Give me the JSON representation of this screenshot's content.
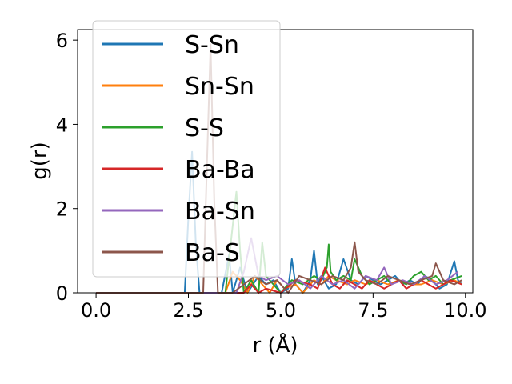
{
  "chart_data": {
    "type": "line",
    "xlabel": "r (Å)",
    "ylabel": "g(r)",
    "xlim": [
      -0.5,
      10.2
    ],
    "ylim": [
      0,
      6.25
    ],
    "xticks": [
      0.0,
      2.5,
      5.0,
      7.5,
      10.0
    ],
    "xtick_labels": [
      "0.0",
      "2.5",
      "5.0",
      "7.5",
      "10.0"
    ],
    "yticks": [
      0,
      2,
      4,
      6
    ],
    "ytick_labels": [
      "0",
      "2",
      "4",
      "6"
    ],
    "grid": false,
    "legend_position": "upper-left",
    "series": [
      {
        "name": "S-Sn",
        "color": "#1f77b4",
        "x": [
          0,
          0.5,
          1,
          1.5,
          2,
          2.4,
          2.5,
          2.6,
          2.7,
          2.8,
          3.0,
          3.4,
          3.6,
          3.7,
          3.9,
          4.1,
          4.4,
          4.6,
          4.8,
          5.0,
          5.2,
          5.3,
          5.4,
          5.6,
          5.8,
          5.9,
          6.0,
          6.1,
          6.3,
          6.5,
          6.7,
          6.9,
          7.1,
          7.3,
          7.5,
          7.7,
          7.9,
          8.1,
          8.3,
          8.5,
          8.7,
          8.9,
          9.1,
          9.3,
          9.5,
          9.7,
          9.8,
          9.9
        ],
        "y": [
          0,
          0,
          0,
          0,
          0,
          0,
          1.8,
          3.35,
          1.2,
          0,
          0,
          0,
          0.9,
          0,
          0.6,
          0,
          0.4,
          0.2,
          0.3,
          0,
          0.1,
          0.8,
          0.2,
          0,
          0.3,
          1.0,
          0.2,
          0.4,
          0.1,
          0.2,
          0.8,
          0.3,
          0.2,
          0.4,
          0.3,
          0.2,
          0.3,
          0.4,
          0.2,
          0.3,
          0.2,
          0.4,
          0.3,
          0.1,
          0.2,
          0.75,
          0.3,
          0.2
        ]
      },
      {
        "name": "Sn-Sn",
        "color": "#ff7f0e",
        "x": [
          0,
          1,
          2,
          3,
          3.5,
          3.7,
          3.9,
          4.1,
          4.3,
          4.5,
          4.7,
          4.9,
          5.1,
          5.4,
          5.6,
          5.9,
          6.1,
          6.3,
          6.5,
          6.8,
          7.0,
          7.3,
          7.6,
          7.9,
          8.2,
          8.5,
          8.8,
          9.1,
          9.4,
          9.7,
          9.9
        ],
        "y": [
          0,
          0,
          0,
          0,
          0,
          0.5,
          0.3,
          0,
          0.4,
          0.2,
          0,
          0.3,
          0.1,
          0.2,
          0,
          0.3,
          0.2,
          0.4,
          0.3,
          0.2,
          0.3,
          0.2,
          0.3,
          0.2,
          0.3,
          0.2,
          0.2,
          0.3,
          0.2,
          0.3,
          0.2
        ]
      },
      {
        "name": "S-S",
        "color": "#2ca02c",
        "x": [
          0,
          1,
          2,
          3,
          3.5,
          3.7,
          3.8,
          3.9,
          4.0,
          4.2,
          4.4,
          4.5,
          4.6,
          4.8,
          5.0,
          5.3,
          5.6,
          5.9,
          6.1,
          6.25,
          6.3,
          6.35,
          6.5,
          6.7,
          6.9,
          7.0,
          7.2,
          7.4,
          7.6,
          7.8,
          8.0,
          8.2,
          8.4,
          8.6,
          8.8,
          9.0,
          9.2,
          9.4,
          9.6,
          9.9
        ],
        "y": [
          0,
          0,
          0,
          0,
          0,
          1.6,
          2.4,
          1.0,
          0,
          0.3,
          0,
          1.2,
          0.4,
          0.2,
          0,
          0.3,
          0.2,
          0.4,
          0.3,
          0.6,
          1.15,
          0.5,
          0.3,
          0.4,
          0.3,
          0.8,
          0.4,
          0.2,
          0.3,
          0.4,
          0.2,
          0.3,
          0.2,
          0.4,
          0.5,
          0.3,
          0.4,
          0.2,
          0.3,
          0.4
        ]
      },
      {
        "name": "Ba-Ba",
        "color": "#d62728",
        "x": [
          0,
          1,
          2,
          3,
          4,
          4.2,
          4.4,
          4.6,
          5.0,
          5.4,
          5.8,
          6.0,
          6.2,
          6.4,
          6.6,
          6.8,
          7.0,
          7.2,
          7.4,
          7.6,
          7.8,
          8.0,
          8.2,
          8.4,
          8.6,
          8.8,
          9.0,
          9.2,
          9.4,
          9.6,
          9.9
        ],
        "y": [
          0,
          0,
          0,
          0,
          0,
          0.2,
          0,
          0.1,
          0,
          0.3,
          0.2,
          0.1,
          0.6,
          0.2,
          0.1,
          0.3,
          0.2,
          0.1,
          0.3,
          0.2,
          0.1,
          0.2,
          0.3,
          0.1,
          0.2,
          0.3,
          0.2,
          0.1,
          0.2,
          0.3,
          0.2
        ]
      },
      {
        "name": "Ba-Sn",
        "color": "#9467bd",
        "x": [
          0,
          1,
          2,
          3,
          3.8,
          4.0,
          4.2,
          4.4,
          4.6,
          4.9,
          5.2,
          5.5,
          5.8,
          6.1,
          6.4,
          6.7,
          7.0,
          7.3,
          7.6,
          7.8,
          8.0,
          8.3,
          8.6,
          8.9,
          9.2,
          9.5,
          9.8
        ],
        "y": [
          0,
          0,
          0,
          0,
          0,
          0.5,
          1.3,
          0.4,
          0.3,
          0.4,
          0.2,
          0.3,
          0.1,
          0.4,
          0.2,
          0.3,
          0.1,
          0.4,
          0.3,
          0.6,
          0.2,
          0.3,
          0.2,
          0.4,
          0.2,
          0.3,
          0.5
        ]
      },
      {
        "name": "Ba-S",
        "color": "#8c564b",
        "x": [
          0,
          1,
          2,
          2.9,
          3.0,
          3.1,
          3.2,
          3.3,
          3.5,
          3.7,
          4.0,
          4.3,
          4.6,
          4.9,
          5.2,
          5.5,
          5.8,
          6.1,
          6.4,
          6.7,
          6.9,
          7.0,
          7.1,
          7.3,
          7.6,
          7.9,
          8.2,
          8.5,
          8.8,
          9.1,
          9.2,
          9.4,
          9.7,
          9.9
        ],
        "y": [
          0,
          0,
          0,
          0,
          3.0,
          5.9,
          2.2,
          0,
          0,
          0,
          0.2,
          0.4,
          0.2,
          0.3,
          0,
          0.4,
          0.3,
          0.2,
          0.4,
          0.3,
          0.6,
          1.2,
          0.5,
          0.3,
          0.2,
          0.4,
          0.3,
          0.2,
          0.3,
          0.4,
          0.7,
          0.3,
          0.2,
          0.3
        ]
      }
    ]
  }
}
